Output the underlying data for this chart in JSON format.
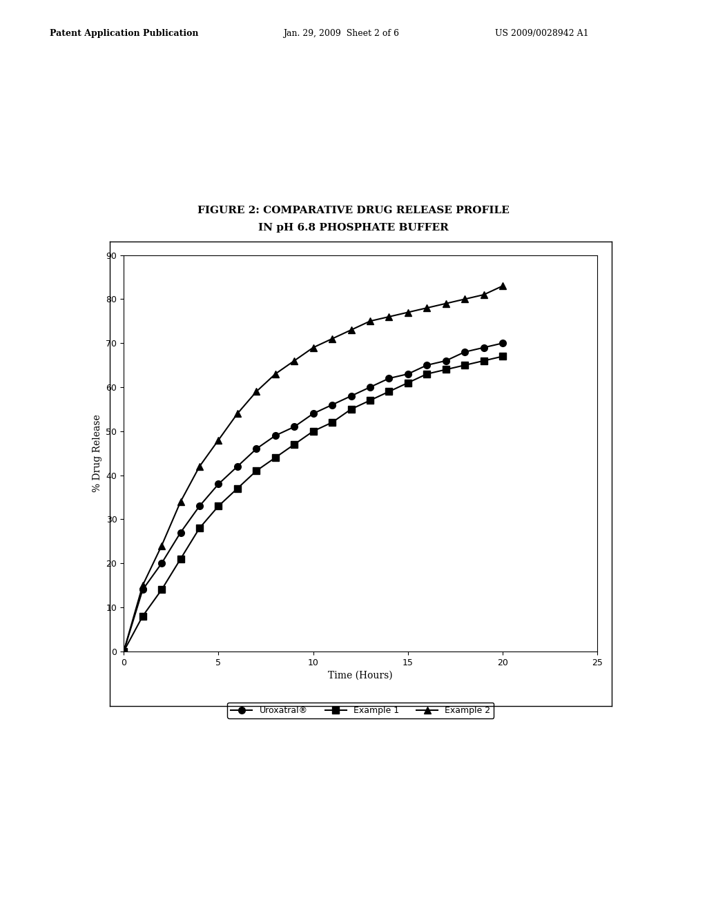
{
  "title_line1": "FIGURE 2: COMPARATIVE DRUG RELEASE PROFILE",
  "title_line2": "IN pH 6.8 PHOSPHATE BUFFER",
  "xlabel": "Time (Hours)",
  "ylabel": "% Drug Release",
  "xlim": [
    0,
    25
  ],
  "ylim": [
    0,
    90
  ],
  "xticks": [
    0,
    5,
    10,
    15,
    20,
    25
  ],
  "yticks": [
    0,
    10,
    20,
    30,
    40,
    50,
    60,
    70,
    80,
    90
  ],
  "background_color": "#ffffff",
  "header_left": "Patent Application Publication",
  "header_mid": "Jan. 29, 2009  Sheet 2 of 6",
  "header_right": "US 2009/0028942 A1",
  "uroxatral": {
    "label": "Uroxatral®",
    "time": [
      0,
      1,
      2,
      3,
      4,
      5,
      6,
      7,
      8,
      9,
      10,
      11,
      12,
      13,
      14,
      15,
      16,
      17,
      18,
      19,
      20
    ],
    "release": [
      0,
      14,
      20,
      27,
      33,
      38,
      42,
      46,
      49,
      51,
      54,
      56,
      58,
      60,
      62,
      63,
      65,
      66,
      68,
      69,
      70
    ],
    "marker": "o",
    "color": "#000000",
    "markersize": 7,
    "linewidth": 1.5
  },
  "example1": {
    "label": "Example 1",
    "time": [
      0,
      1,
      2,
      3,
      4,
      5,
      6,
      7,
      8,
      9,
      10,
      11,
      12,
      13,
      14,
      15,
      16,
      17,
      18,
      19,
      20
    ],
    "release": [
      0,
      8,
      14,
      21,
      28,
      33,
      37,
      41,
      44,
      47,
      50,
      52,
      55,
      57,
      59,
      61,
      63,
      64,
      65,
      66,
      67
    ],
    "marker": "s",
    "color": "#000000",
    "markersize": 7,
    "linewidth": 1.5
  },
  "example2": {
    "label": "Example 2",
    "time": [
      0,
      1,
      2,
      3,
      4,
      5,
      6,
      7,
      8,
      9,
      10,
      11,
      12,
      13,
      14,
      15,
      16,
      17,
      18,
      19,
      20
    ],
    "release": [
      0,
      15,
      24,
      34,
      42,
      48,
      54,
      59,
      63,
      66,
      69,
      71,
      73,
      75,
      76,
      77,
      78,
      79,
      80,
      81,
      83
    ],
    "marker": "^",
    "color": "#000000",
    "markersize": 7,
    "linewidth": 1.5
  },
  "header_fontsize": 9,
  "plot_title_fontsize": 11,
  "axis_label_fontsize": 10,
  "tick_fontsize": 9,
  "legend_fontsize": 9
}
